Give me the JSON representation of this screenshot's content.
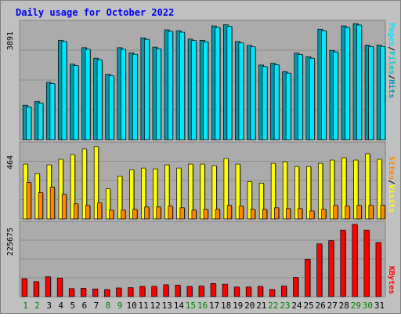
{
  "title": "Daily usage for October 2022",
  "colors": {
    "background": "#c0c0c0",
    "plot_background": "#ababab",
    "title_text": "#0000ff",
    "pages": "#00e6ff",
    "files": "#00cccc",
    "hits": "#0099aa",
    "sites": "#ff8800",
    "visits": "#ffff00",
    "kbytes": "#ff0000",
    "weekend_label": "#008000",
    "weekday_label": "#000000"
  },
  "legend": {
    "top": {
      "pages": "Pages",
      "files": "Files",
      "hits": "Hits",
      "sep": "/"
    },
    "middle": {
      "sites": "Sites",
      "visits": "Visits",
      "sep": "/"
    },
    "bottom": {
      "kbytes": "KBytes"
    }
  },
  "chart_data": [
    {
      "type": "bar",
      "panel": "hits-files-pages",
      "y_max_label": "3891",
      "ylim": [
        0,
        3891
      ],
      "categories": [
        "1",
        "2",
        "3",
        "4",
        "5",
        "6",
        "7",
        "8",
        "9",
        "10",
        "11",
        "12",
        "13",
        "14",
        "15",
        "16",
        "17",
        "18",
        "19",
        "20",
        "21",
        "22",
        "23",
        "24",
        "25",
        "26",
        "27",
        "28",
        "29",
        "30",
        "31"
      ],
      "series": [
        {
          "name": "Hits",
          "values": [
            1150,
            1280,
            1920,
            3330,
            2530,
            3080,
            2730,
            2190,
            3080,
            2910,
            3410,
            3100,
            3680,
            3650,
            3370,
            3330,
            3810,
            3850,
            3290,
            3160,
            2500,
            2560,
            2280,
            2900,
            2780,
            3700,
            2990,
            3810,
            3891,
            3170,
            3170
          ]
        },
        {
          "name": "Files",
          "values": [
            1100,
            1230,
            1880,
            3290,
            2480,
            3030,
            2680,
            2140,
            3030,
            2860,
            3360,
            3050,
            3630,
            3600,
            3320,
            3280,
            3760,
            3800,
            3240,
            3110,
            2450,
            2510,
            2230,
            2850,
            2730,
            3650,
            2940,
            3760,
            3840,
            3120,
            3120
          ]
        }
      ]
    },
    {
      "type": "bar",
      "panel": "visits-sites",
      "y_max_label": "464",
      "ylim": [
        0,
        464
      ],
      "categories": [
        "1",
        "2",
        "3",
        "4",
        "5",
        "6",
        "7",
        "8",
        "9",
        "10",
        "11",
        "12",
        "13",
        "14",
        "15",
        "16",
        "17",
        "18",
        "19",
        "20",
        "21",
        "22",
        "23",
        "24",
        "25",
        "26",
        "27",
        "28",
        "29",
        "30",
        "31"
      ],
      "series": [
        {
          "name": "Visits",
          "values": [
            345,
            285,
            340,
            375,
            405,
            440,
            455,
            190,
            270,
            310,
            320,
            315,
            340,
            320,
            345,
            345,
            335,
            380,
            345,
            235,
            225,
            350,
            360,
            330,
            330,
            350,
            370,
            385,
            370,
            410,
            375
          ]
        },
        {
          "name": "Sites",
          "values": [
            230,
            165,
            200,
            155,
            95,
            85,
            100,
            55,
            55,
            60,
            75,
            75,
            80,
            70,
            55,
            60,
            60,
            85,
            80,
            60,
            60,
            70,
            65,
            65,
            50,
            60,
            85,
            80,
            85,
            85,
            85
          ]
        }
      ]
    },
    {
      "type": "bar",
      "panel": "kbytes",
      "y_max_label": "225675",
      "ylim": [
        0,
        225675
      ],
      "categories": [
        "1",
        "2",
        "3",
        "4",
        "5",
        "6",
        "7",
        "8",
        "9",
        "10",
        "11",
        "12",
        "13",
        "14",
        "15",
        "16",
        "17",
        "18",
        "19",
        "20",
        "21",
        "22",
        "23",
        "24",
        "25",
        "26",
        "27",
        "28",
        "29",
        "30",
        "31"
      ],
      "series": [
        {
          "name": "KBytes",
          "values": [
            56000,
            47000,
            62000,
            58000,
            25000,
            26000,
            24000,
            22000,
            27000,
            28000,
            32000,
            32000,
            37000,
            36000,
            32000,
            33000,
            41000,
            39000,
            30000,
            30000,
            32000,
            22000,
            33000,
            60000,
            117000,
            165000,
            175000,
            208000,
            225675,
            208000,
            169000
          ]
        }
      ]
    }
  ]
}
